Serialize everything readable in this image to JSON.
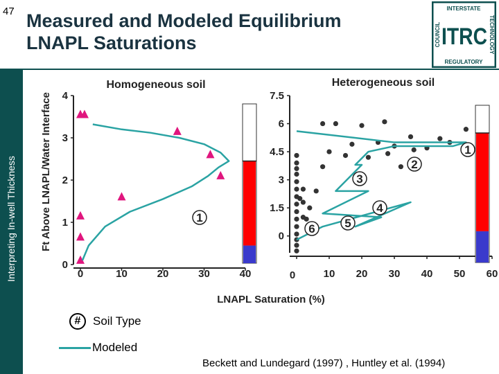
{
  "slide": {
    "number": "47",
    "title_line1": "Measured and Modeled Equilibrium",
    "title_line2": "LNAPL Saturations",
    "sidebar_text": "Interpreting In-well Thickness",
    "citation": "Beckett and Lundegard (1997) , Huntley et al. (1994)",
    "brand_color": "#0d4f4f"
  },
  "logo": {
    "main": "ITRC",
    "top": "INTERSTATE",
    "right": "TECHNOLOGY",
    "bottom": "REGULATORY",
    "left": "COUNCIL"
  },
  "legend": {
    "marker_symbol": "#",
    "soil_type_label": "Soil Type",
    "modeled_label": "Modeled",
    "modeled_color": "#2aa3a3"
  },
  "chart_data": [
    {
      "type": "scatter",
      "title": "Homogeneous soil",
      "ylabel": "Ft Above LNAPL/Water Interface",
      "xlabel": "LNAPL Saturation (%)",
      "xlim": [
        0,
        40
      ],
      "ylim": [
        0,
        4
      ],
      "x_ticks": [
        "0",
        "10",
        "20",
        "30",
        "40"
      ],
      "y_ticks": [
        "0",
        "1",
        "2",
        "3",
        "4"
      ],
      "soil_type_labels": [
        "1"
      ],
      "series": [
        {
          "kind": "measured",
          "marker": "triangle",
          "color": "#e0167e",
          "x": [
            0,
            0,
            0,
            1,
            10,
            23.5,
            31.5,
            34,
            0
          ],
          "y": [
            0.1,
            0.65,
            1.15,
            3.55,
            1.6,
            3.15,
            2.6,
            2.1,
            3.55
          ]
        },
        {
          "name": "Modeled",
          "kind": "modeled",
          "color": "#2aa3a3",
          "x": [
            0.5,
            2,
            6,
            12,
            20,
            27,
            31,
            33.5,
            36,
            34,
            30,
            24,
            17,
            10,
            3
          ],
          "y": [
            0.1,
            0.45,
            0.9,
            1.25,
            1.55,
            1.85,
            2.1,
            2.3,
            2.45,
            2.65,
            2.85,
            3.0,
            3.12,
            3.2,
            3.32
          ]
        }
      ],
      "well_bar": {
        "free_product_top": 2.45,
        "water_top": 0.45,
        "colors": {
          "lnapl": "#ff0000",
          "water": "#3a3acc",
          "air": "#ffffff"
        }
      }
    },
    {
      "type": "scatter",
      "title": "Heterogeneous soil",
      "xlabel": "LNAPL Saturation (%)",
      "xlim": [
        0,
        60
      ],
      "ylim": [
        -0.9,
        7.5
      ],
      "x_ticks": [
        "0",
        "10",
        "20",
        "30",
        "40",
        "50",
        "60"
      ],
      "y_ticks": [
        "0",
        "1.5",
        "3",
        "4.5",
        "6",
        "7.5"
      ],
      "soil_type_labels": [
        "1",
        "2",
        "3",
        "4",
        "5",
        "6"
      ],
      "series": [
        {
          "kind": "measured",
          "marker": "circle",
          "color": "#333333",
          "x": [
            0,
            0,
            0,
            0,
            0,
            0,
            0,
            0,
            0,
            0,
            0,
            0,
            0,
            0,
            0,
            1,
            2,
            2,
            2,
            3,
            4,
            6,
            8,
            10,
            12,
            15,
            17,
            20,
            22,
            25,
            27,
            30,
            32,
            35,
            36,
            40,
            44,
            47,
            52,
            8,
            28
          ],
          "y": [
            -0.8,
            -0.5,
            -0.2,
            0.1,
            0.5,
            0.9,
            1.3,
            1.7,
            2.1,
            2.5,
            2.9,
            3.3,
            3.6,
            3.9,
            4.3,
            2.0,
            1.0,
            1.8,
            2.5,
            0.9,
            1.5,
            2.4,
            3.7,
            4.5,
            6.0,
            4.3,
            4.9,
            5.9,
            4.2,
            5.0,
            6.1,
            4.8,
            3.7,
            5.3,
            4.6,
            4.7,
            5.2,
            5.0,
            5.7,
            6.0,
            4.4
          ]
        },
        {
          "name": "Modeled",
          "kind": "modeled",
          "color": "#2aa3a3",
          "x": [
            0,
            30,
            52,
            48,
            30,
            22,
            18,
            20,
            12,
            22,
            8,
            26,
            18,
            35,
            8,
            0
          ],
          "y": [
            5.6,
            5.0,
            5.0,
            4.8,
            4.8,
            4.5,
            3.8,
            3.8,
            2.4,
            2.4,
            1.2,
            1.0,
            0.5,
            1.8,
            0.5,
            -0.2
          ]
        }
      ],
      "well_bar": {
        "free_product_top": 5.5,
        "water_top": 0.25,
        "colors": {
          "lnapl": "#ff0000",
          "water": "#3a3acc",
          "air": "#ffffff"
        }
      }
    }
  ]
}
